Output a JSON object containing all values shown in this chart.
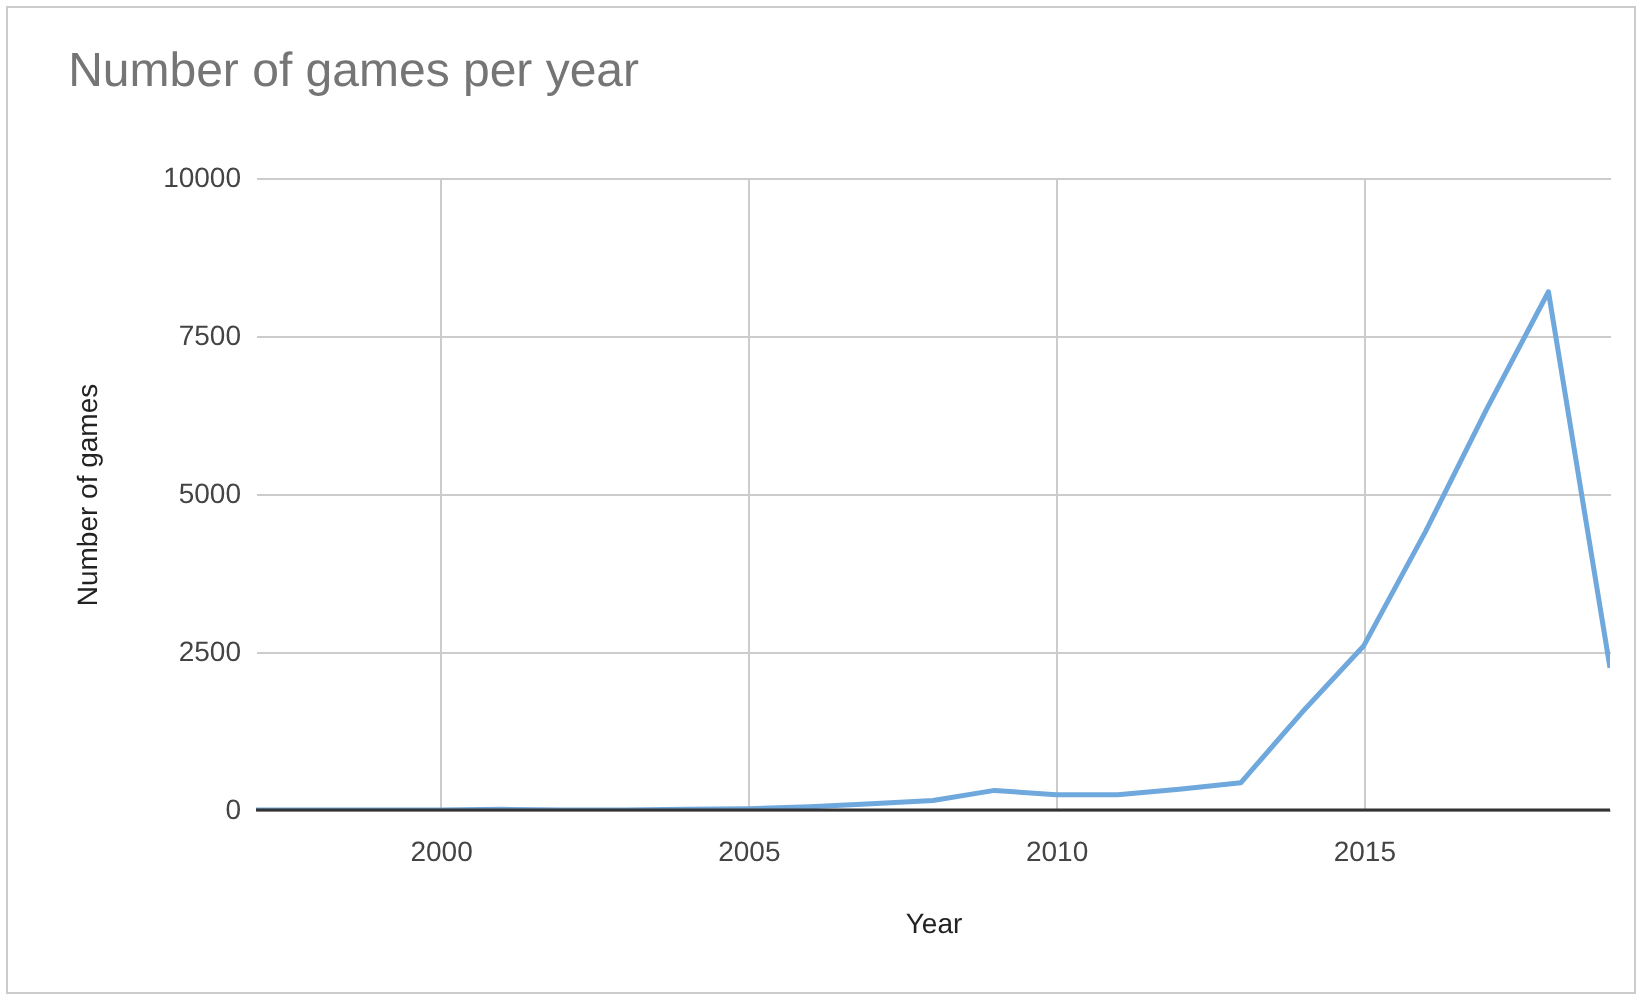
{
  "chart_data": {
    "type": "line",
    "title": "Number of games per year",
    "xlabel": "Year",
    "ylabel": "Number of games",
    "x": [
      1997,
      1998,
      1999,
      2000,
      2001,
      2002,
      2003,
      2004,
      2005,
      2006,
      2007,
      2008,
      2009,
      2010,
      2011,
      2012,
      2013,
      2014,
      2015,
      2016,
      2017,
      2018,
      2019
    ],
    "series": [
      {
        "color": "#6fa8dc",
        "values": [
          0,
          0,
          0,
          0,
          10,
          0,
          0,
          10,
          20,
          50,
          100,
          150,
          310,
          240,
          240,
          330,
          430,
          1550,
          2600,
          4400,
          6350,
          8200,
          2250
        ]
      }
    ],
    "xlim": [
      1997,
      2019
    ],
    "xticks": [
      2000,
      2005,
      2010,
      2015
    ],
    "ylim": [
      0,
      10000
    ],
    "yticks": [
      0,
      2500,
      5000,
      7500,
      10000
    ],
    "grid": true
  }
}
